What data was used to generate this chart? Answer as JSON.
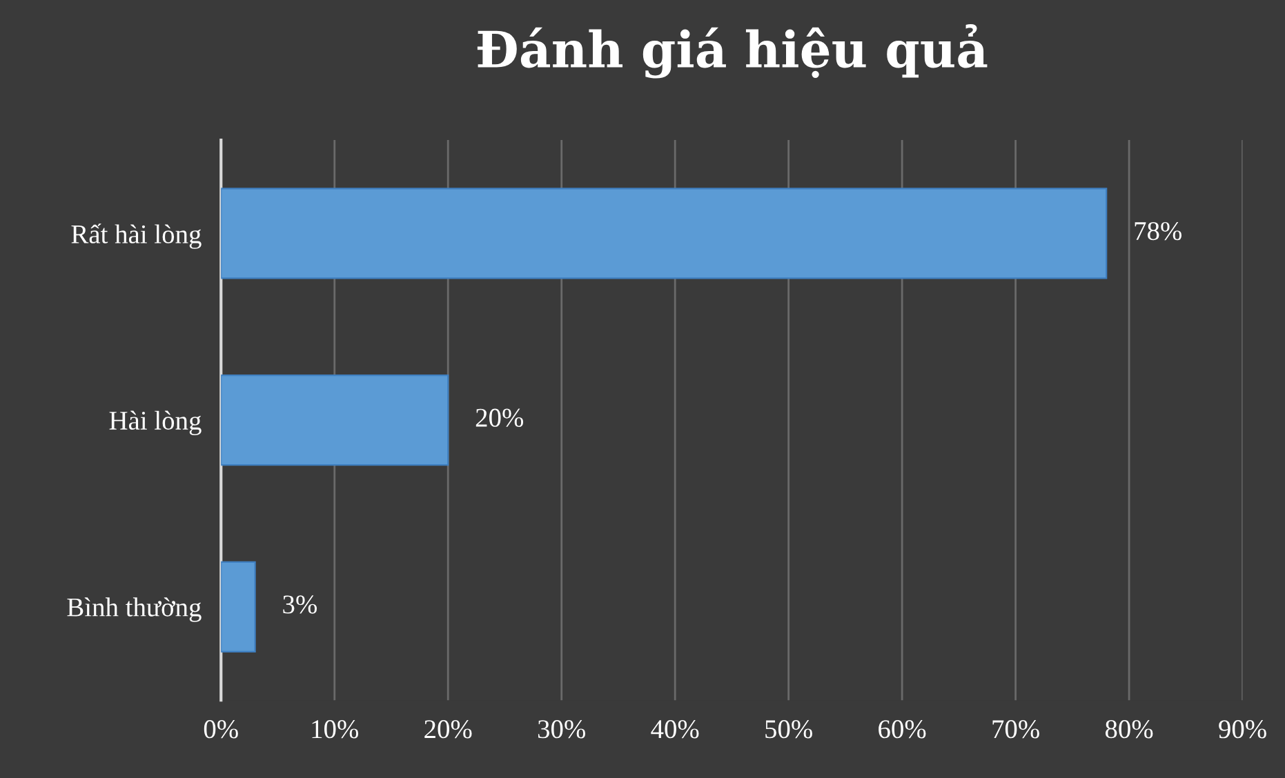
{
  "chart_data": {
    "type": "bar",
    "orientation": "horizontal",
    "title": "Đánh giá hiệu quả",
    "categories": [
      "Rất hài lòng",
      "Hài lòng",
      "Bình thường"
    ],
    "values": [
      78,
      20,
      3
    ],
    "value_labels": [
      "78%",
      "20%",
      "3%"
    ],
    "color": "#5b9bd5",
    "xlim": [
      0,
      90
    ],
    "xticks": [
      {
        "value": 0,
        "label": "0%"
      },
      {
        "value": 10,
        "label": "10%"
      },
      {
        "value": 20,
        "label": "20%"
      },
      {
        "value": 30,
        "label": "30%"
      },
      {
        "value": 40,
        "label": "40%"
      },
      {
        "value": 50,
        "label": "50%"
      },
      {
        "value": 60,
        "label": "60%"
      },
      {
        "value": 70,
        "label": "70%"
      },
      {
        "value": 80,
        "label": "80%"
      },
      {
        "value": 90,
        "label": "90%"
      }
    ],
    "grid": "x"
  }
}
